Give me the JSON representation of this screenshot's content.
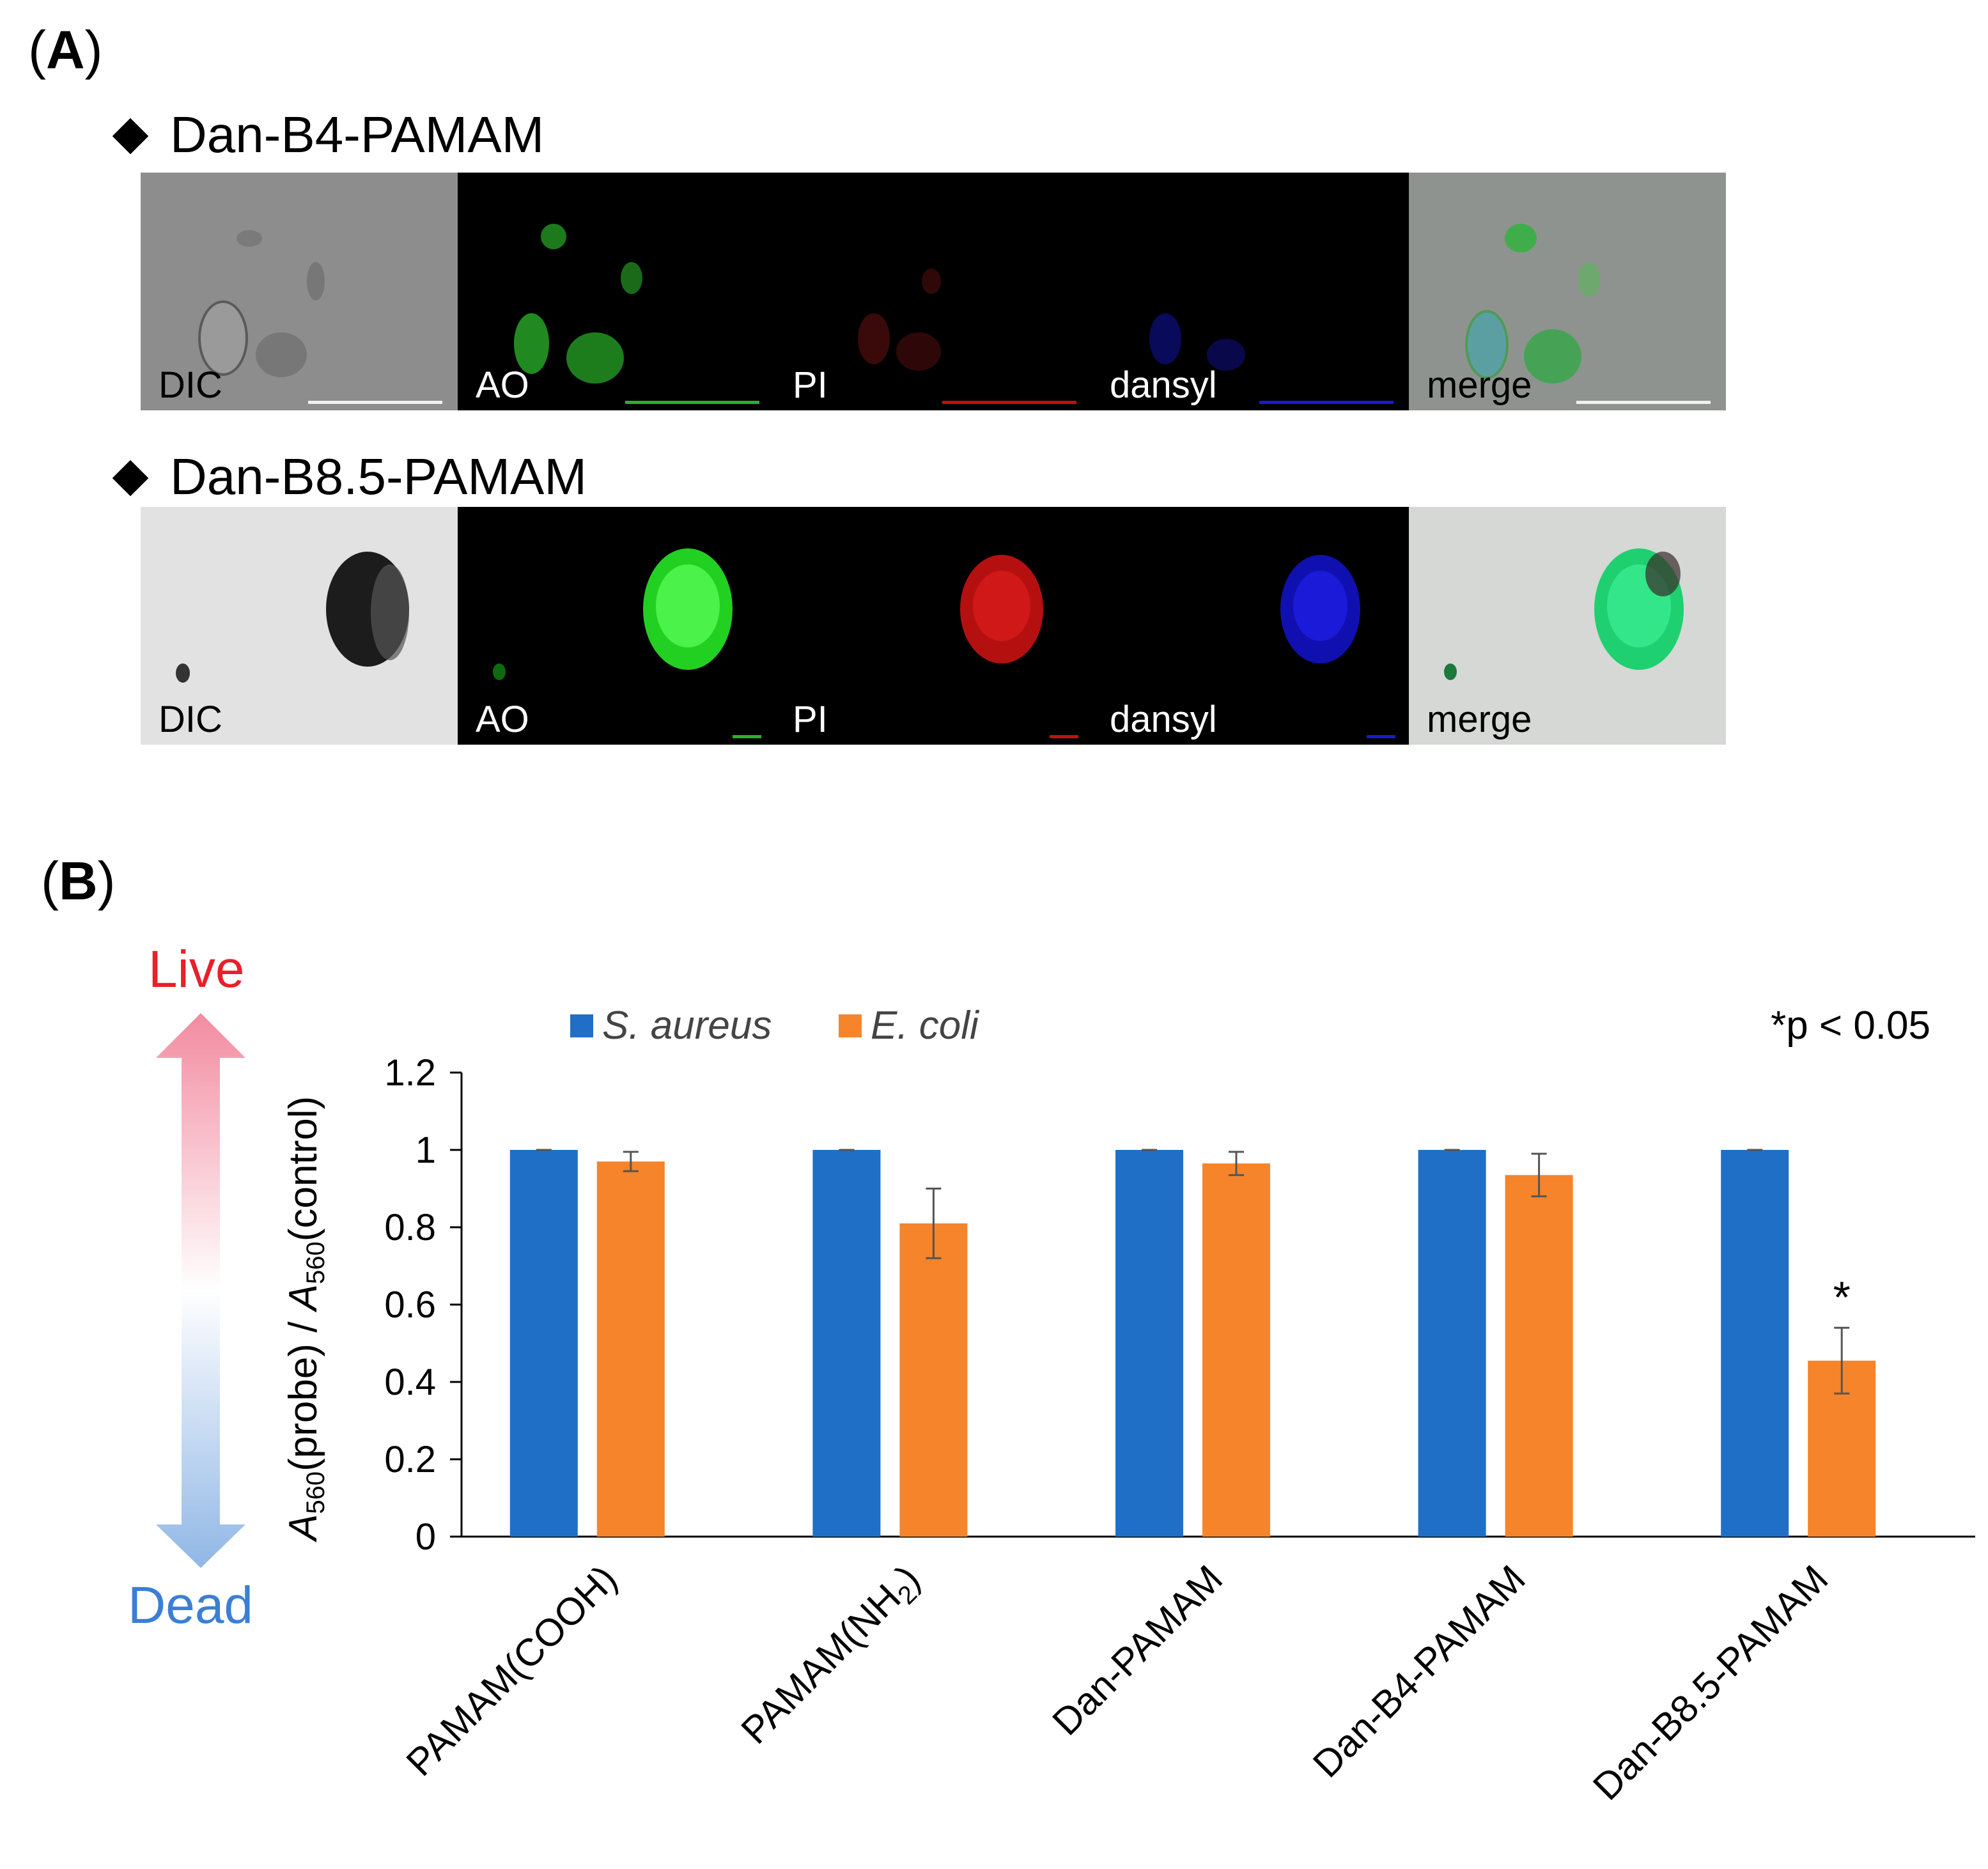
{
  "panel_a": {
    "label_letter": "A",
    "rows": [
      {
        "title": "Dan-B4-PAMAM",
        "tiles": [
          {
            "label": "DIC"
          },
          {
            "label": "AO"
          },
          {
            "label": "PI"
          },
          {
            "label": "dansyl"
          },
          {
            "label": "merge"
          }
        ]
      },
      {
        "title": "Dan-B8.5-PAMAM",
        "tiles": [
          {
            "label": "DIC"
          },
          {
            "label": "AO"
          },
          {
            "label": "PI"
          },
          {
            "label": "dansyl"
          },
          {
            "label": "merge"
          }
        ]
      }
    ]
  },
  "panel_b": {
    "label_letter": "B",
    "live_label": "Live",
    "dead_label": "Dead",
    "live_color": "#e8202a",
    "dead_color": "#3b7fd4"
  },
  "chart_data": {
    "type": "bar",
    "categories": [
      "PAMAM(COOH)",
      "PAMAM(NH2)",
      "Dan-PAMAM",
      "Dan-B4-PAMAM",
      "Dan-B8.5-PAMAM"
    ],
    "series": [
      {
        "name": "S. aureus",
        "color": "#1f6fc6",
        "values": [
          1.0,
          1.0,
          1.0,
          1.0,
          1.0
        ],
        "errors": [
          0.0,
          0.0,
          0.0,
          0.0,
          0.0
        ]
      },
      {
        "name": "E. coli",
        "color": "#f5842a",
        "values": [
          0.97,
          0.81,
          0.965,
          0.935,
          0.455
        ],
        "errors": [
          0.025,
          0.09,
          0.03,
          0.055,
          0.085
        ]
      }
    ],
    "ylabel": "A560(probe) / A560(control)",
    "ylim": [
      0,
      1.2
    ],
    "yticks": [
      "0",
      "0.2",
      "0.4",
      "0.6",
      "0.8",
      "1",
      "1.2"
    ],
    "significance_note": "*p < 0.05",
    "significant_marker": "*",
    "significant_category": "Dan-B8.5-PAMAM",
    "legend_position": "top",
    "grid": false
  }
}
